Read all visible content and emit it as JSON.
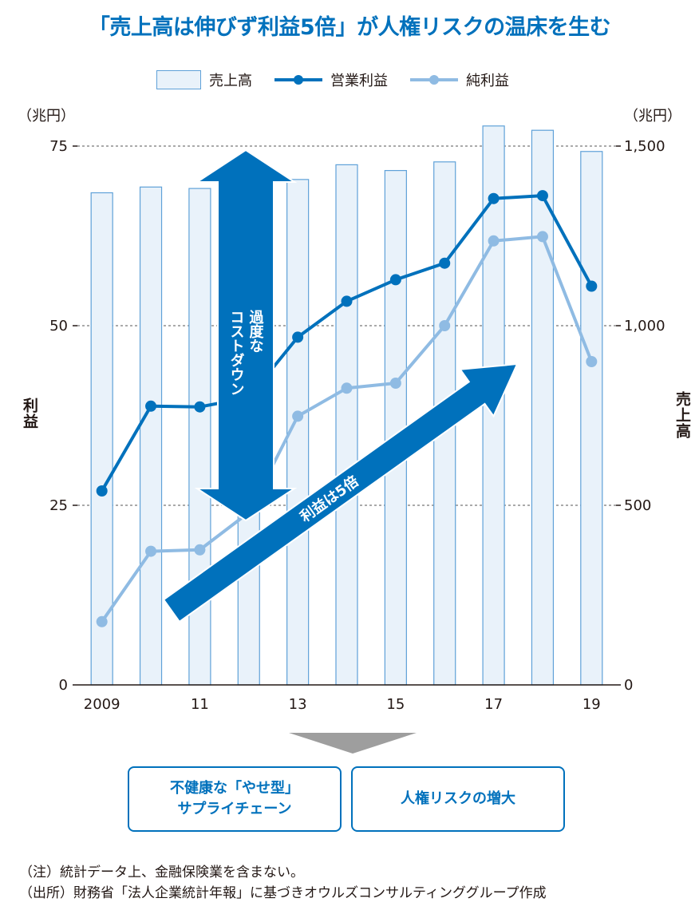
{
  "title": "「売上高は伸びず利益5倍」が人権リスクの温床を生む",
  "legend": {
    "items": [
      {
        "label": "売上高",
        "kind": "bar",
        "color": "#e9f2fa",
        "edge": "#5fa1d8"
      },
      {
        "label": "営業利益",
        "kind": "line",
        "color": "#0071bc"
      },
      {
        "label": "純利益",
        "kind": "line",
        "color": "#8fbbe3"
      }
    ]
  },
  "axes": {
    "left_unit": "（兆円）",
    "right_unit": "（兆円）",
    "left_title": "利益",
    "right_title": "売上高"
  },
  "chart_data": {
    "type": "bar+line",
    "x": [
      "2009",
      "2010",
      "2011",
      "2012",
      "2013",
      "2014",
      "2015",
      "2016",
      "2017",
      "2018",
      "2019"
    ],
    "x_tick_labels": [
      "2009",
      "",
      "11",
      "",
      "13",
      "",
      "15",
      "",
      "17",
      "",
      "19"
    ],
    "series": [
      {
        "name": "売上高",
        "type": "bar",
        "axis": "right",
        "values": [
          1370,
          1386,
          1382,
          1396,
          1407,
          1448,
          1432,
          1456,
          1556,
          1544,
          1485
        ]
      },
      {
        "name": "営業利益",
        "type": "line",
        "axis": "left",
        "values": [
          27.0,
          38.8,
          38.7,
          40.0,
          48.4,
          53.4,
          56.4,
          58.7,
          67.7,
          68.1,
          55.5
        ]
      },
      {
        "name": "純利益",
        "type": "line",
        "axis": "left",
        "values": [
          8.8,
          18.6,
          18.8,
          24.0,
          37.4,
          41.3,
          42.0,
          50.0,
          61.8,
          62.4,
          45.0
        ]
      }
    ],
    "left_axis": {
      "range": [
        0,
        75
      ],
      "ticks": [
        0,
        25,
        50,
        75
      ],
      "tick_labels": [
        "0",
        "25",
        "50",
        "75"
      ]
    },
    "right_axis": {
      "range": [
        0,
        1500
      ],
      "ticks": [
        0,
        500,
        1000,
        1500
      ],
      "tick_labels": [
        "0",
        "500",
        "1,000",
        "1,500"
      ]
    },
    "grid": "dashed horizontal",
    "annotations": [
      {
        "text": "過度な\nコストダウン",
        "kind": "double-arrow"
      },
      {
        "text": "利益は5倍",
        "kind": "arrow"
      }
    ]
  },
  "outcomes": [
    {
      "text": "不健康な「やせ型」\nサプライチェーン"
    },
    {
      "text": "人権リスクの増大"
    }
  ],
  "notes": [
    "（注）統計データ上、金融保険業を含まない。",
    "（出所）財務省「法人企業統計年報」に基づきオウルズコンサルティンググループ作成"
  ]
}
